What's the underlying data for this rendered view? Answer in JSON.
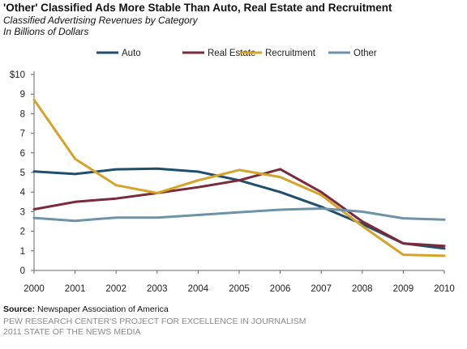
{
  "footer": {
    "source_label": "Source:",
    "source_text": "Newspaper Association of America",
    "credit_line1": "PEW RESEARCH CENTER'S PROJECT FOR EXCELLENCE IN JOURNALISM",
    "credit_line2": "2011 STATE OF THE NEWS MEDIA"
  },
  "chart_data": {
    "type": "line",
    "title": "'Other' Classified Ads More Stable Than Auto, Real Estate and Recruitment",
    "subtitle": "Classified Advertising Revenues by Category",
    "units": "In Billions of Dollars",
    "x": [
      "2000",
      "2001",
      "2002",
      "2003",
      "2004",
      "2005",
      "2006",
      "2007",
      "2008",
      "2009",
      "2010"
    ],
    "ylim": [
      0,
      10
    ],
    "y_ticks": [
      "0",
      "1",
      "2",
      "3",
      "4",
      "5",
      "6",
      "7",
      "8",
      "9",
      "$10"
    ],
    "grid": false,
    "legend_position": "top",
    "series": [
      {
        "name": "Auto",
        "color": "#1f4e6e",
        "values": [
          5.05,
          4.92,
          5.16,
          5.2,
          5.04,
          4.6,
          4.0,
          3.25,
          2.37,
          1.38,
          1.12
        ]
      },
      {
        "name": "Real Estate",
        "color": "#7a2a3a",
        "values": [
          3.12,
          3.5,
          3.67,
          3.95,
          4.25,
          4.6,
          5.17,
          4.0,
          2.5,
          1.38,
          1.25
        ]
      },
      {
        "name": "Recruitment",
        "color": "#d4a32a",
        "values": [
          8.71,
          5.7,
          4.35,
          3.95,
          4.6,
          5.13,
          4.77,
          3.85,
          2.27,
          0.8,
          0.75
        ]
      },
      {
        "name": "Other",
        "color": "#6e93a8",
        "values": [
          2.68,
          2.53,
          2.7,
          2.7,
          2.83,
          2.97,
          3.1,
          3.16,
          3.0,
          2.66,
          2.59
        ]
      }
    ]
  }
}
